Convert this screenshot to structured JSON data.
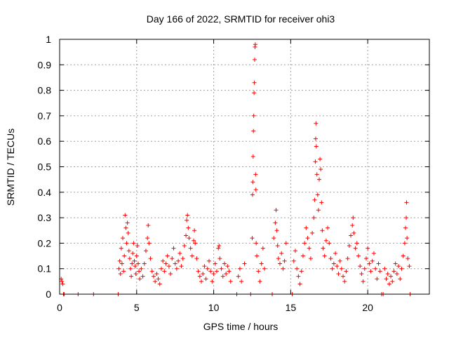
{
  "chart_data": {
    "type": "scatter",
    "title": "Day 166 of 2022, SRMTID for receiver ohi3",
    "xlabel": "GPS time / hours",
    "ylabel": "SRMTID / TECUs",
    "xlim": [
      0,
      24
    ],
    "ylim": [
      0,
      1
    ],
    "xticks": [
      0,
      5,
      10,
      15,
      20
    ],
    "xtick_labels": [
      "0",
      "5",
      "10",
      "15",
      "20"
    ],
    "yticks": [
      0,
      0.1,
      0.2,
      0.3,
      0.4,
      0.5,
      0.6,
      0.7,
      0.8,
      0.9,
      1
    ],
    "ytick_labels": [
      "0",
      "0.1",
      "0.2",
      "0.3",
      "0.4",
      "0.5",
      "0.6",
      "0.7",
      "0.8",
      "0.9",
      "1"
    ],
    "grid": true,
    "marker": "+",
    "marker_color": "#ff0000",
    "series": [
      {
        "name": "SRMTID",
        "points": [
          [
            0.1,
            0.06
          ],
          [
            0.15,
            0.05
          ],
          [
            0.2,
            0.04
          ],
          [
            0.25,
            0.0
          ],
          [
            0.3,
            0.0
          ],
          [
            1.2,
            0.0
          ],
          [
            2.2,
            0.0
          ],
          [
            3.8,
            0.0
          ],
          [
            3.85,
            0.1
          ],
          [
            3.9,
            0.13
          ],
          [
            3.95,
            0.08
          ],
          [
            4.0,
            0.18
          ],
          [
            4.05,
            0.12
          ],
          [
            4.1,
            0.22
          ],
          [
            4.15,
            0.09
          ],
          [
            4.2,
            0.15
          ],
          [
            4.25,
            0.31
          ],
          [
            4.3,
            0.26
          ],
          [
            4.35,
            0.2
          ],
          [
            4.4,
            0.28
          ],
          [
            4.45,
            0.24
          ],
          [
            4.5,
            0.17
          ],
          [
            4.55,
            0.14
          ],
          [
            4.6,
            0.1
          ],
          [
            4.65,
            0.07
          ],
          [
            4.7,
            0.12
          ],
          [
            4.75,
            0.16
          ],
          [
            4.8,
            0.2
          ],
          [
            4.85,
            0.13
          ],
          [
            4.9,
            0.11
          ],
          [
            4.95,
            0.08
          ],
          [
            5.0,
            0.15
          ],
          [
            5.05,
            0.19
          ],
          [
            5.1,
            0.12
          ],
          [
            5.15,
            0.09
          ],
          [
            5.2,
            0.06
          ],
          [
            5.3,
            0.1
          ],
          [
            5.4,
            0.07
          ],
          [
            5.5,
            0.12
          ],
          [
            5.6,
            0.17
          ],
          [
            5.7,
            0.22
          ],
          [
            5.75,
            0.27
          ],
          [
            5.8,
            0.2
          ],
          [
            5.9,
            0.14
          ],
          [
            6.0,
            0.09
          ],
          [
            6.1,
            0.07
          ],
          [
            6.2,
            0.05
          ],
          [
            6.3,
            0.08
          ],
          [
            6.4,
            0.06
          ],
          [
            6.5,
            0.04
          ],
          [
            6.6,
            0.1
          ],
          [
            6.7,
            0.13
          ],
          [
            6.8,
            0.09
          ],
          [
            6.9,
            0.12
          ],
          [
            7.0,
            0.15
          ],
          [
            7.1,
            0.11
          ],
          [
            7.2,
            0.08
          ],
          [
            7.3,
            0.14
          ],
          [
            7.4,
            0.18
          ],
          [
            7.5,
            0.12
          ],
          [
            7.6,
            0.1
          ],
          [
            7.7,
            0.13
          ],
          [
            7.8,
            0.16
          ],
          [
            7.9,
            0.11
          ],
          [
            8.0,
            0.14
          ],
          [
            8.1,
            0.19
          ],
          [
            8.2,
            0.23
          ],
          [
            8.25,
            0.29
          ],
          [
            8.3,
            0.31
          ],
          [
            8.35,
            0.26
          ],
          [
            8.4,
            0.22
          ],
          [
            8.5,
            0.18
          ],
          [
            8.6,
            0.15
          ],
          [
            8.7,
            0.21
          ],
          [
            8.75,
            0.25
          ],
          [
            8.8,
            0.2
          ],
          [
            8.9,
            0.14
          ],
          [
            9.0,
            0.09
          ],
          [
            9.1,
            0.07
          ],
          [
            9.2,
            0.05
          ],
          [
            9.3,
            0.08
          ],
          [
            9.4,
            0.11
          ],
          [
            9.5,
            0.06
          ],
          [
            9.6,
            0.1
          ],
          [
            9.7,
            0.13
          ],
          [
            9.8,
            0.09
          ],
          [
            9.9,
            0.05
          ],
          [
            10.0,
            0.08
          ],
          [
            10.1,
            0.12
          ],
          [
            10.2,
            0.09
          ],
          [
            10.3,
            0.18
          ],
          [
            10.35,
            0.19
          ],
          [
            10.4,
            0.14
          ],
          [
            10.5,
            0.1
          ],
          [
            10.6,
            0.07
          ],
          [
            10.7,
            0.12
          ],
          [
            10.8,
            0.08
          ],
          [
            10.9,
            0.11
          ],
          [
            11.0,
            0.09
          ],
          [
            11.1,
            0.05
          ],
          [
            11.5,
            0.0
          ],
          [
            11.6,
            0.07
          ],
          [
            11.7,
            0.1
          ],
          [
            11.8,
            0.05
          ],
          [
            12.0,
            0.12
          ],
          [
            12.4,
            0.0
          ],
          [
            12.5,
            0.22
          ],
          [
            12.52,
            0.39
          ],
          [
            12.54,
            0.44
          ],
          [
            12.56,
            0.54
          ],
          [
            12.58,
            0.64
          ],
          [
            12.6,
            0.7
          ],
          [
            12.62,
            0.79
          ],
          [
            12.64,
            0.83
          ],
          [
            12.66,
            0.92
          ],
          [
            12.68,
            0.97
          ],
          [
            12.7,
            0.98
          ],
          [
            12.72,
            0.47
          ],
          [
            12.74,
            0.41
          ],
          [
            12.76,
            0.2
          ],
          [
            12.8,
            0.15
          ],
          [
            12.9,
            0.09
          ],
          [
            13.0,
            0.05
          ],
          [
            13.1,
            0.12
          ],
          [
            13.2,
            0.18
          ],
          [
            13.3,
            0.1
          ],
          [
            13.8,
            0.0
          ],
          [
            13.9,
            0.22
          ],
          [
            14.0,
            0.28
          ],
          [
            14.05,
            0.33
          ],
          [
            14.1,
            0.25
          ],
          [
            14.15,
            0.19
          ],
          [
            14.2,
            0.14
          ],
          [
            14.3,
            0.12
          ],
          [
            14.4,
            0.16
          ],
          [
            14.5,
            0.1
          ],
          [
            14.6,
            0.13
          ],
          [
            14.7,
            0.2
          ],
          [
            15.1,
            0.0
          ],
          [
            15.2,
            0.13
          ],
          [
            15.3,
            0.17
          ],
          [
            15.4,
            0.1
          ],
          [
            15.5,
            0.07
          ],
          [
            15.6,
            0.04
          ],
          [
            15.7,
            0.09
          ],
          [
            15.8,
            0.15
          ],
          [
            15.9,
            0.2
          ],
          [
            16.0,
            0.26
          ],
          [
            16.1,
            0.22
          ],
          [
            16.2,
            0.18
          ],
          [
            16.3,
            0.14
          ],
          [
            16.4,
            0.24
          ],
          [
            16.5,
            0.3
          ],
          [
            16.55,
            0.37
          ],
          [
            16.6,
            0.52
          ],
          [
            16.62,
            0.61
          ],
          [
            16.64,
            0.67
          ],
          [
            16.66,
            0.58
          ],
          [
            16.7,
            0.47
          ],
          [
            16.75,
            0.39
          ],
          [
            16.8,
            0.33
          ],
          [
            16.85,
            0.45
          ],
          [
            16.9,
            0.53
          ],
          [
            16.95,
            0.49
          ],
          [
            17.0,
            0.36
          ],
          [
            17.05,
            0.25
          ],
          [
            17.1,
            0.18
          ],
          [
            17.2,
            0.15
          ],
          [
            17.3,
            0.21
          ],
          [
            17.4,
            0.26
          ],
          [
            17.5,
            0.2
          ],
          [
            17.6,
            0.14
          ],
          [
            17.7,
            0.1
          ],
          [
            17.8,
            0.12
          ],
          [
            17.9,
            0.16
          ],
          [
            18.0,
            0.11
          ],
          [
            18.1,
            0.08
          ],
          [
            18.2,
            0.13
          ],
          [
            18.3,
            0.1
          ],
          [
            18.4,
            0.07
          ],
          [
            18.5,
            0.05
          ],
          [
            18.6,
            0.09
          ],
          [
            18.7,
            0.14
          ],
          [
            18.8,
            0.19
          ],
          [
            18.9,
            0.23
          ],
          [
            19.0,
            0.27
          ],
          [
            19.05,
            0.3
          ],
          [
            19.1,
            0.24
          ],
          [
            19.2,
            0.18
          ],
          [
            19.3,
            0.2
          ],
          [
            19.4,
            0.15
          ],
          [
            19.5,
            0.11
          ],
          [
            19.6,
            0.08
          ],
          [
            19.7,
            0.05
          ],
          [
            19.8,
            0.1
          ],
          [
            19.9,
            0.14
          ],
          [
            20.0,
            0.18
          ],
          [
            20.1,
            0.12
          ],
          [
            20.2,
            0.09
          ],
          [
            20.3,
            0.13
          ],
          [
            20.4,
            0.16
          ],
          [
            20.5,
            0.1
          ],
          [
            20.6,
            0.06
          ],
          [
            20.7,
            0.12
          ],
          [
            20.8,
            0.09
          ],
          [
            20.9,
            0.0
          ],
          [
            21.0,
            0.0
          ],
          [
            21.1,
            0.1
          ],
          [
            21.2,
            0.06
          ],
          [
            21.3,
            0.08
          ],
          [
            21.4,
            0.04
          ],
          [
            21.5,
            0.07
          ],
          [
            21.6,
            0.05
          ],
          [
            21.7,
            0.09
          ],
          [
            21.8,
            0.12
          ],
          [
            21.9,
            0.08
          ],
          [
            22.0,
            0.11
          ],
          [
            22.1,
            0.06
          ],
          [
            22.2,
            0.1
          ],
          [
            22.3,
            0.15
          ],
          [
            22.4,
            0.2
          ],
          [
            22.45,
            0.26
          ],
          [
            22.5,
            0.3
          ],
          [
            22.52,
            0.36
          ],
          [
            22.55,
            0.22
          ],
          [
            22.6,
            0.14
          ],
          [
            22.7,
            0.11
          ],
          [
            22.75,
            0.0
          ]
        ]
      }
    ]
  }
}
